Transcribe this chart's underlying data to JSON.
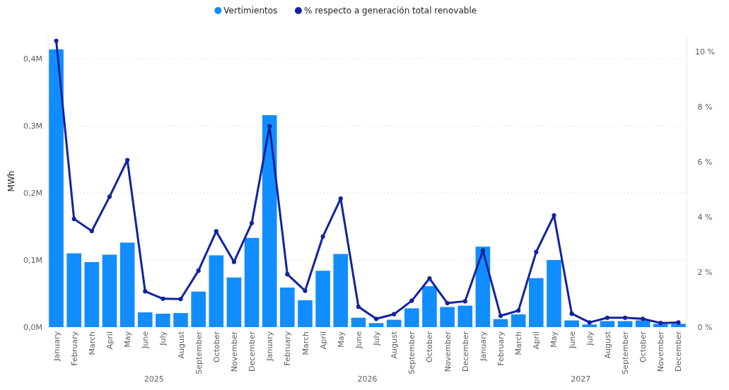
{
  "chart_data": {
    "type": "bar",
    "ylabel": "MWh",
    "categories": [
      "January",
      "February",
      "March",
      "April",
      "May",
      "June",
      "July",
      "August",
      "September",
      "October",
      "November",
      "December",
      "January",
      "February",
      "March",
      "April",
      "May",
      "June",
      "July",
      "August",
      "September",
      "October",
      "November",
      "December",
      "January",
      "February",
      "March",
      "April",
      "May",
      "June",
      "July",
      "August",
      "September",
      "October",
      "November",
      "December"
    ],
    "series": [
      {
        "name": "Vertimientos",
        "color": "#118dff",
        "values": [
          0.414,
          0.11,
          0.097,
          0.108,
          0.126,
          0.022,
          0.02,
          0.021,
          0.053,
          0.107,
          0.074,
          0.133,
          0.316,
          0.059,
          0.04,
          0.084,
          0.109,
          0.014,
          0.006,
          0.011,
          0.028,
          0.061,
          0.03,
          0.032,
          0.12,
          0.012,
          0.019,
          0.073,
          0.1,
          0.01,
          0.004,
          0.009,
          0.009,
          0.01,
          0.005,
          0.005
        ]
      },
      {
        "name": "% respecto a generación total renovable",
        "type": "line",
        "axis": "y2",
        "color": "#12239e",
        "values": [
          10.4,
          3.93,
          3.49,
          4.74,
          6.07,
          1.3,
          1.03,
          1.02,
          2.05,
          3.48,
          2.37,
          3.78,
          7.3,
          1.92,
          1.32,
          3.29,
          4.67,
          0.74,
          0.3,
          0.47,
          0.96,
          1.77,
          0.87,
          0.94,
          2.78,
          0.41,
          0.6,
          2.73,
          4.06,
          0.49,
          0.17,
          0.34,
          0.34,
          0.3,
          0.15,
          0.17
        ]
      }
    ],
    "ylim": [
      0,
      0.435
    ],
    "yticks": [
      {
        "value": 0,
        "label": "0,0M"
      },
      {
        "value": 0.1,
        "label": "0,1M"
      },
      {
        "value": 0.2,
        "label": "0,2M"
      },
      {
        "value": 0.3,
        "label": "0,3M"
      },
      {
        "value": 0.4,
        "label": "0,4M"
      }
    ],
    "y2lim": [
      0,
      10.6
    ],
    "y2ticks": [
      {
        "value": 0,
        "label": "0 %"
      },
      {
        "value": 2,
        "label": "2 %"
      },
      {
        "value": 4,
        "label": "4 %"
      },
      {
        "value": 6,
        "label": "6 %"
      },
      {
        "value": 8,
        "label": "8 %"
      },
      {
        "value": 10,
        "label": "10 %"
      }
    ],
    "annotations": [
      "2025",
      "2026",
      "2027"
    ],
    "grid": "y",
    "legend": "top",
    "marker": "circle",
    "line_style": "solid"
  }
}
